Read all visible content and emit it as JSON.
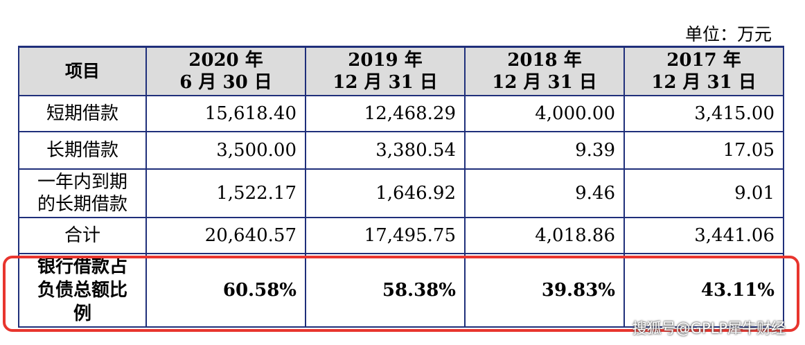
{
  "unit_label": "单位：万元",
  "table": {
    "header": {
      "item": "项目",
      "cols": [
        {
          "line1": "2020 年",
          "line2": "6 月 30 日"
        },
        {
          "line1": "2019 年",
          "line2": "12 月 31 日"
        },
        {
          "line1": "2018 年",
          "line2": "12 月 31 日"
        },
        {
          "line1": "2017 年",
          "line2": "12 月 31 日"
        }
      ]
    },
    "rows": [
      {
        "label": "短期借款",
        "values": [
          "15,618.40",
          "12,468.29",
          "4,000.00",
          "3,415.00"
        ]
      },
      {
        "label": "长期借款",
        "values": [
          "3,500.00",
          "3,380.54",
          "9.39",
          "17.05"
        ]
      },
      {
        "label_line1": "一年内到期",
        "label_line2": "的长期借款",
        "values": [
          "1,522.17",
          "1,646.92",
          "9.46",
          "9.01"
        ]
      },
      {
        "label": "合计",
        "values": [
          "20,640.57",
          "17,495.75",
          "4,018.86",
          "3,441.06"
        ]
      },
      {
        "label_line1": "银行借款占",
        "label_line2": "负债总额比",
        "label_line3": "例",
        "values": [
          "60.58%",
          "58.38%",
          "39.83%",
          "43.11%"
        ]
      }
    ]
  },
  "colors": {
    "border": "#1f2f7a",
    "header_bg": "#dcdcdc",
    "highlight": "#e8352e"
  },
  "watermark": "搜狐号@GPLP犀牛财经"
}
